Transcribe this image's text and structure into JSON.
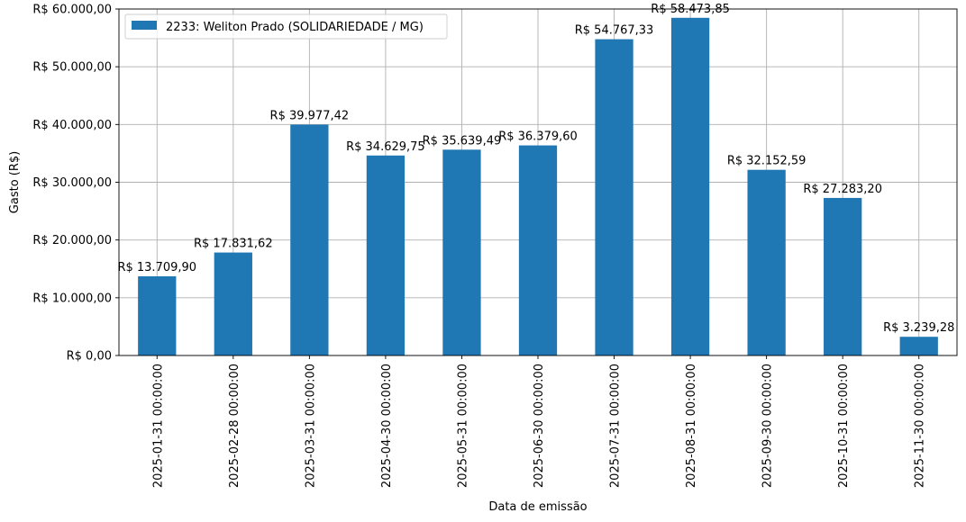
{
  "chart_data": {
    "type": "bar",
    "categories": [
      "2025-01-31 00:00:00",
      "2025-02-28 00:00:00",
      "2025-03-31 00:00:00",
      "2025-04-30 00:00:00",
      "2025-05-31 00:00:00",
      "2025-06-30 00:00:00",
      "2025-07-31 00:00:00",
      "2025-08-31 00:00:00",
      "2025-09-30 00:00:00",
      "2025-10-31 00:00:00",
      "2025-11-30 00:00:00"
    ],
    "series": [
      {
        "name": "2233: Weliton Prado (SOLIDARIEDADE / MG)",
        "color": "#1f77b4",
        "values": [
          13709.9,
          17831.62,
          39977.42,
          34629.75,
          35639.49,
          36379.6,
          54767.33,
          58473.85,
          32152.59,
          27283.2,
          3239.28
        ],
        "labels": [
          "R$ 13.709,90",
          "R$ 17.831,62",
          "R$ 39.977,42",
          "R$ 34.629,75",
          "R$ 35.639,49",
          "R$ 36.379,60",
          "R$ 54.767,33",
          "R$ 58.473,85",
          "R$ 32.152,59",
          "R$ 27.283,20",
          "R$ 3.239,28"
        ]
      }
    ],
    "xlabel": "Data de emissão",
    "ylabel": "Gasto (R$)",
    "ylim": [
      0,
      60000
    ],
    "yticks": [
      0,
      10000,
      20000,
      30000,
      40000,
      50000,
      60000
    ],
    "ytick_labels": [
      "R$ 0,00",
      "R$ 10.000,00",
      "R$ 20.000,00",
      "R$ 30.000,00",
      "R$ 40.000,00",
      "R$ 50.000,00",
      "R$ 60.000,00"
    ],
    "grid": true,
    "legend_position": "top-left"
  }
}
